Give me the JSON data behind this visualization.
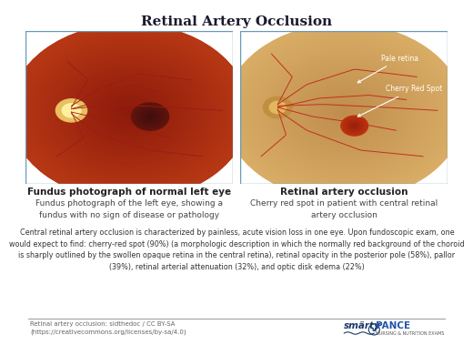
{
  "title": "Retinal Artery Occlusion",
  "title_fontsize": 11,
  "title_color": "#1a1a2e",
  "bg_color": "#ffffff",
  "left_panel_title": "Fundus photograph of normal left eye",
  "left_panel_desc": "Fundus photograph of the left eye, showing a\nfundus with no sign of disease or pathology",
  "right_panel_title": "Retinal artery occlusion",
  "right_panel_desc": "Cherry red spot in patient with central retinal\nartery occlusion",
  "right_label1": "Pale retina",
  "right_label2": "Cherry Red Spot",
  "body_text": "Central retinal artery occlusion is characterized by painless, acute vision loss in one eye. Upon fundoscopic exam, one\nwould expect to find: cherry-red spot (90%) (a morphologic description in which the normally red background of the choroid\nis sharply outlined by the swollen opaque retina in the central retina), retinal opacity in the posterior pole (58%), pallor\n(39%), retinal arterial attenuation (32%), and optic disk edema (22%)",
  "footer_text": "Retinal artery occlusion: sidthedoc / CC BY-SA\n(https://creativecommons.org/licenses/by-sa/4.0)",
  "panel_border_color": "#6699bb",
  "panel_title_fontsize": 7.5,
  "panel_desc_fontsize": 6.5,
  "body_fontsize": 5.8,
  "footer_fontsize": 5.0,
  "label_fontsize": 5.5
}
